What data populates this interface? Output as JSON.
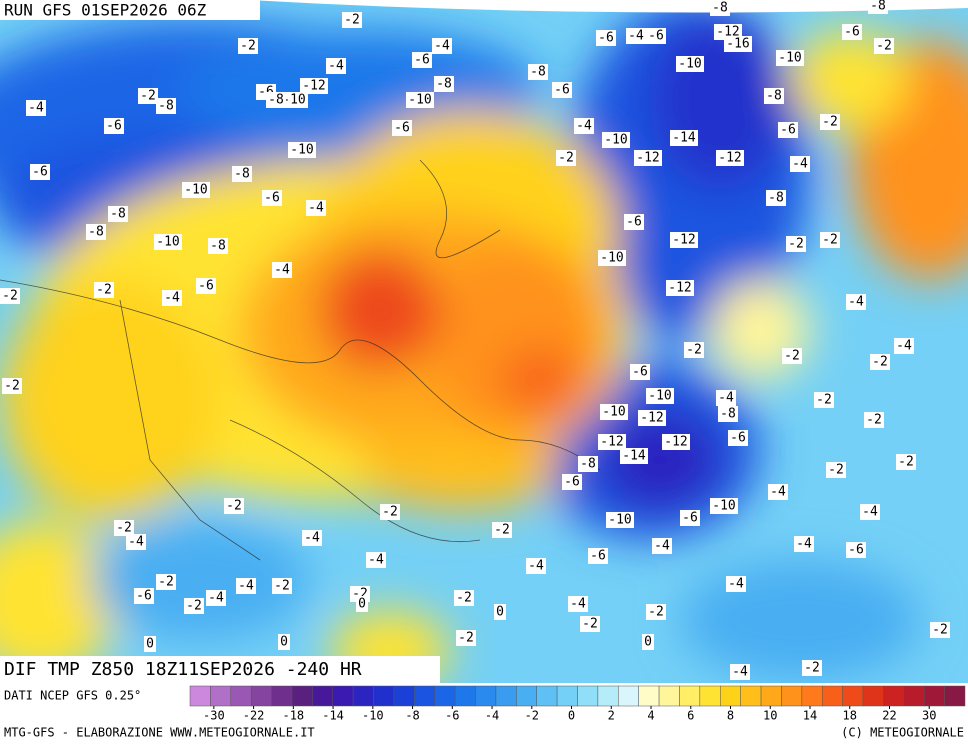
{
  "header": {
    "run": "RUN GFS 01SEP2026 06Z"
  },
  "map": {
    "field_label": "DIF TMP Z850 18Z11SEP2026 -240 HR",
    "contour_labels": [
      -2,
      -4,
      -6,
      -8,
      -6,
      -8,
      -10,
      -12,
      -10,
      -6,
      -10,
      -4,
      -2,
      -10,
      -14,
      -12,
      -12,
      -4,
      -8,
      -10,
      -10,
      -12,
      -16,
      -8,
      -6,
      -2,
      -6,
      -12,
      -10,
      -2,
      -2,
      -12,
      -4,
      -2,
      -2,
      -6,
      -10,
      -10,
      -12,
      -12,
      -12,
      -14,
      -8,
      -4,
      -6,
      -8,
      -6,
      -10,
      -10,
      -6,
      -4,
      -6,
      -4,
      -4,
      -6,
      -4,
      -2,
      -2,
      -2,
      -2,
      -2,
      -4,
      -4,
      -2,
      -4,
      -2,
      -4,
      -2,
      -4,
      -2,
      -4,
      -2,
      -2,
      -4,
      -2,
      -6,
      -4,
      -2,
      -4,
      -2,
      -2,
      0,
      0,
      -2,
      -2,
      0,
      0,
      0,
      -2,
      -4,
      -2,
      -4,
      -6,
      -2,
      -4,
      -2,
      -2,
      -8,
      -10,
      -8,
      -8,
      -10,
      -6,
      -4,
      -8,
      -6,
      -6,
      -4,
      -8,
      -2,
      -2,
      -4,
      -6,
      -8,
      -6,
      -4,
      -6,
      -8,
      -8,
      -6,
      -2
    ]
  },
  "legend": {
    "source": "DATI NCEP GFS 0.25°",
    "colors": [
      "#cc88dd",
      "#b070c8",
      "#9a58b4",
      "#8444a0",
      "#6e308c",
      "#5a2080",
      "#48189a",
      "#3a1ab0",
      "#2c24c0",
      "#2030cc",
      "#1a40d8",
      "#1a54e0",
      "#1a66e6",
      "#1e78ea",
      "#2a8aee",
      "#3a9cf0",
      "#4aaef2",
      "#5ec0f4",
      "#74d0f6",
      "#90def8",
      "#b4ecfa",
      "#d8f6fc",
      "#fffcc8",
      "#fff59a",
      "#ffee66",
      "#ffe333",
      "#ffd21a",
      "#ffbe1a",
      "#ffa81a",
      "#ff921a",
      "#ff7a1a",
      "#f8601a",
      "#ee4a1a",
      "#e0341a",
      "#cc2222",
      "#b81c2c",
      "#a01838",
      "#881844"
    ],
    "ticks": [
      -30,
      -22,
      -18,
      -14,
      -10,
      -8,
      -6,
      -4,
      -2,
      0,
      2,
      4,
      6,
      8,
      10,
      14,
      18,
      22,
      30
    ]
  },
  "footer": {
    "left": "MTG-GFS - ELABORAZIONE WWW.METEOGIORNALE.IT",
    "right": "(C) METEOGIORNALE"
  }
}
